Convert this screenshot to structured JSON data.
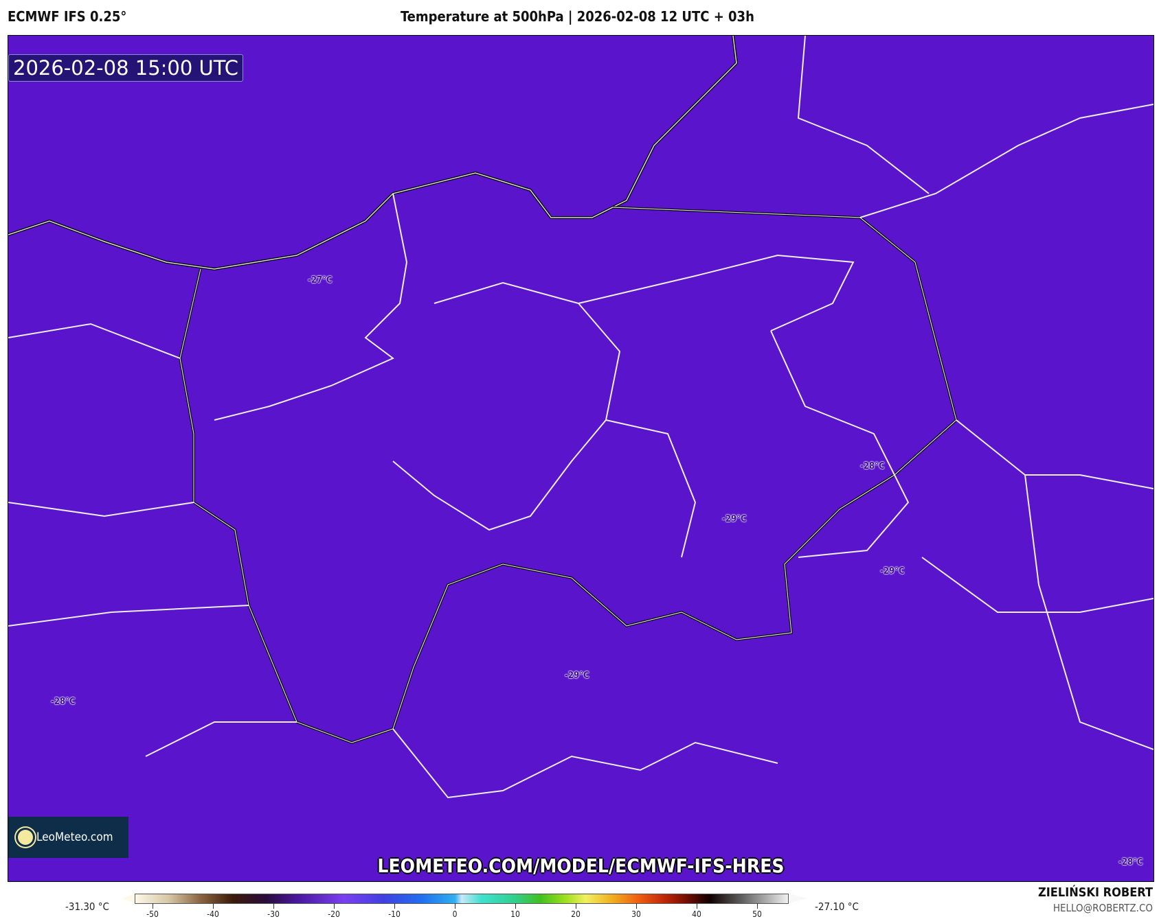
{
  "header": {
    "model": "ECMWF IFS 0.25°",
    "title": "Temperature at 500hPa | 2026-02-08 12 UTC + 03h"
  },
  "map": {
    "valid_time": "2026-02-08 15:00 UTC",
    "fill_color": "#5a14cc",
    "watermark": "LEOMETEO.COM/MODEL/ECMWF-IFS-HRES",
    "logo": "LeoMeteo.com",
    "temp_labels": [
      "-27°C",
      "-28°C",
      "-29°C",
      "-29°C",
      "-29°C",
      "-28°C",
      "-28°C"
    ]
  },
  "colorbar": {
    "min_label": "-31.30 °C",
    "max_label": "-27.10 °C",
    "ticks": [
      "-50",
      "-40",
      "-30",
      "-20",
      "-10",
      "0",
      "10",
      "20",
      "30",
      "40",
      "50"
    ]
  },
  "author": {
    "name": "ZIELIŃSKI ROBERT",
    "email": "HELLO@ROBERTZ.CO"
  }
}
